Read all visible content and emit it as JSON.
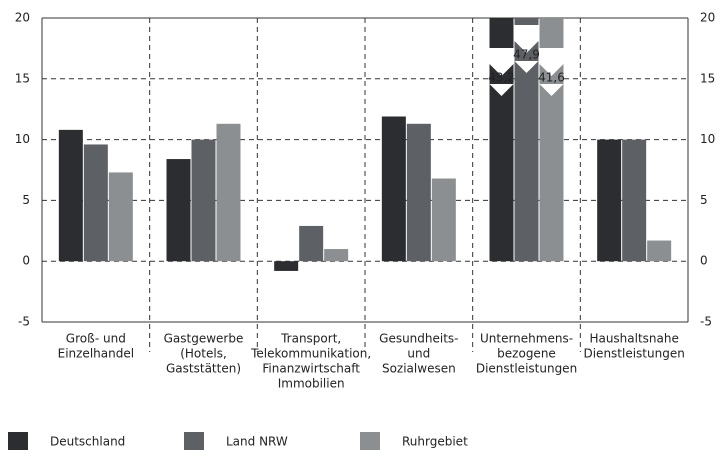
{
  "chart_data": {
    "type": "bar",
    "categories": [
      [
        "Groß- und",
        "Einzelhandel"
      ],
      [
        "Gastgewerbe",
        "(Hotels,",
        "Gaststätten)"
      ],
      [
        "Transport,",
        "Telekommunikation,",
        "Finanzwirtschaft",
        "Immobilien"
      ],
      [
        "Gesundheits-",
        "und",
        "Sozialwesen"
      ],
      [
        "Unternehmens-",
        "bezogene",
        "Dienstleistungen"
      ],
      [
        "Haushaltsnahe",
        "Dienstleistungen"
      ]
    ],
    "series": [
      {
        "name": "Deutschland",
        "color": "#2b2d31",
        "values": [
          10.8,
          8.4,
          -0.8,
          11.9,
          43.2,
          10.0
        ],
        "value_labels": [
          null,
          null,
          null,
          null,
          "43,2",
          null
        ]
      },
      {
        "name": "Land NRW",
        "color": "#5d6064",
        "values": [
          9.6,
          10.0,
          2.9,
          11.3,
          47.9,
          10.0
        ],
        "value_labels": [
          null,
          null,
          null,
          null,
          "47,9",
          null
        ]
      },
      {
        "name": "Ruhrgebiet",
        "color": "#8c8f92",
        "values": [
          7.3,
          11.3,
          1.0,
          6.8,
          41.6,
          1.7
        ],
        "value_labels": [
          null,
          null,
          null,
          null,
          "41,6",
          null
        ]
      }
    ],
    "ylim": [
      -5,
      20
    ],
    "yticks": [
      -5,
      0,
      5,
      10,
      15,
      20
    ],
    "grid": true
  }
}
